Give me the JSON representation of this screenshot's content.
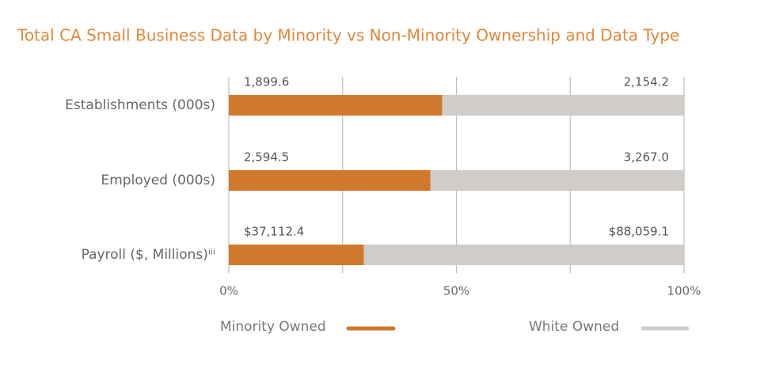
{
  "chart_data": {
    "type": "bar",
    "orientation": "horizontal",
    "stacked": "percent",
    "title": "Total CA Small Business Data by Minority vs Non-Minority Ownership and Data Type",
    "categories": [
      "Establishments (000s)",
      "Employed (000s)",
      "Payroll ($, Millions)ⁱⁱⁱ"
    ],
    "series": [
      {
        "name": "Minority Owned",
        "color": "#d0782b",
        "values": [
          1899.6,
          2594.5,
          37112.4
        ],
        "value_labels": [
          "1,899.6",
          "2,594.5",
          "$37,112.4"
        ]
      },
      {
        "name": "White Owned",
        "color": "#d0ccc9",
        "values": [
          2154.2,
          3267.0,
          88059.1
        ],
        "value_labels": [
          "2,154.2",
          "3,267.0",
          "$88,059.1"
        ]
      }
    ],
    "xlim": [
      0,
      100
    ],
    "xticks": [
      {
        "value": 0,
        "label": "0%"
      },
      {
        "value": 50,
        "label": "50%"
      },
      {
        "value": 100,
        "label": "100%"
      }
    ],
    "xgrid": [
      0,
      25,
      50,
      75,
      100
    ],
    "grid": true,
    "legend": "bottom"
  }
}
